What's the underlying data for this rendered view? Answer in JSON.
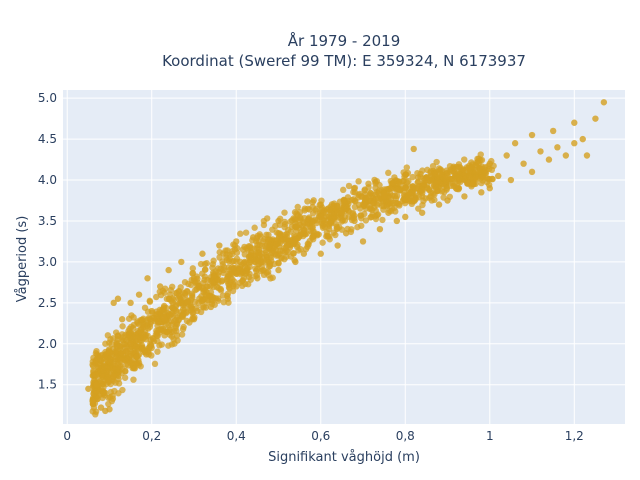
{
  "chart_data": {
    "type": "scatter",
    "title_line1": "År 1979 - 2019",
    "title_line2": "Koordinat (Sweref 99 TM): E 359324, N 6173937",
    "xlabel": "Signifikant våghöjd (m)",
    "ylabel": "Vågperiod (s)",
    "xlim": [
      -0.01,
      1.32
    ],
    "ylim": [
      1.02,
      5.1
    ],
    "x_ticks": [
      0,
      0.2,
      0.4,
      0.6,
      0.8,
      1.0,
      1.2
    ],
    "x_tick_labels": [
      "0",
      "0,2",
      "0,4",
      "0,6",
      "0,8",
      "1",
      "1,2"
    ],
    "y_ticks": [
      1.5,
      2.0,
      2.5,
      3.0,
      3.5,
      4.0,
      4.5,
      5.0
    ],
    "y_tick_labels": [
      "1.5",
      "2.0",
      "2.5",
      "3.0",
      "3.5",
      "4.0",
      "4.5",
      "5.0"
    ],
    "grid": true,
    "colors": {
      "marker": "#d4a020",
      "plot_bg": "#e5ecf6",
      "grid": "#ffffff",
      "text": "#2a3f5f"
    },
    "points": [
      [
        0.05,
        1.45
      ],
      [
        0.06,
        1.3
      ],
      [
        0.07,
        1.5
      ],
      [
        0.08,
        1.22
      ],
      [
        0.09,
        1.4
      ],
      [
        0.1,
        1.2
      ],
      [
        0.11,
        1.6
      ],
      [
        0.1,
        1.9
      ],
      [
        0.12,
        2.1
      ],
      [
        0.12,
        1.75
      ],
      [
        0.13,
        2.3
      ],
      [
        0.14,
        1.9
      ],
      [
        0.15,
        2.5
      ],
      [
        0.15,
        2.0
      ],
      [
        0.16,
        1.7
      ],
      [
        0.17,
        2.6
      ],
      [
        0.18,
        2.2
      ],
      [
        0.19,
        2.8
      ],
      [
        0.2,
        2.4
      ],
      [
        0.2,
        1.95
      ],
      [
        0.22,
        2.7
      ],
      [
        0.23,
        2.3
      ],
      [
        0.24,
        2.9
      ],
      [
        0.25,
        2.5
      ],
      [
        0.26,
        2.1
      ],
      [
        0.27,
        3.0
      ],
      [
        0.28,
        2.6
      ],
      [
        0.3,
        2.8
      ],
      [
        0.3,
        2.3
      ],
      [
        0.32,
        3.1
      ],
      [
        0.33,
        2.7
      ],
      [
        0.34,
        2.45
      ],
      [
        0.36,
        3.2
      ],
      [
        0.37,
        2.9
      ],
      [
        0.38,
        2.55
      ],
      [
        0.4,
        3.25
      ],
      [
        0.4,
        2.7
      ],
      [
        0.42,
        3.0
      ],
      [
        0.44,
        3.3
      ],
      [
        0.45,
        2.8
      ],
      [
        0.46,
        3.1
      ],
      [
        0.48,
        2.95
      ],
      [
        0.5,
        3.35
      ],
      [
        0.5,
        2.9
      ],
      [
        0.52,
        3.2
      ],
      [
        0.54,
        3.0
      ],
      [
        0.55,
        3.45
      ],
      [
        0.56,
        3.1
      ],
      [
        0.58,
        3.3
      ],
      [
        0.6,
        3.55
      ],
      [
        0.6,
        3.1
      ],
      [
        0.62,
        3.4
      ],
      [
        0.64,
        3.2
      ],
      [
        0.65,
        3.6
      ],
      [
        0.66,
        3.35
      ],
      [
        0.68,
        3.5
      ],
      [
        0.7,
        3.7
      ],
      [
        0.7,
        3.25
      ],
      [
        0.72,
        3.55
      ],
      [
        0.74,
        3.4
      ],
      [
        0.75,
        3.8
      ],
      [
        0.76,
        3.6
      ],
      [
        0.78,
        3.5
      ],
      [
        0.8,
        3.9
      ],
      [
        0.8,
        3.55
      ],
      [
        0.82,
        3.75
      ],
      [
        0.84,
        3.6
      ],
      [
        0.85,
        4.0
      ],
      [
        0.86,
        3.8
      ],
      [
        0.88,
        3.7
      ],
      [
        0.9,
        4.05
      ],
      [
        0.9,
        3.75
      ],
      [
        0.92,
        3.9
      ],
      [
        0.94,
        3.8
      ],
      [
        0.95,
        4.15
      ],
      [
        0.96,
        3.95
      ],
      [
        0.98,
        3.85
      ],
      [
        1.0,
        4.2
      ],
      [
        1.0,
        3.9
      ],
      [
        1.02,
        4.05
      ],
      [
        1.04,
        4.3
      ],
      [
        1.05,
        4.0
      ],
      [
        1.06,
        4.45
      ],
      [
        1.08,
        4.2
      ],
      [
        1.1,
        4.1
      ],
      [
        1.1,
        4.55
      ],
      [
        1.12,
        4.35
      ],
      [
        1.14,
        4.25
      ],
      [
        1.15,
        4.6
      ],
      [
        1.16,
        4.4
      ],
      [
        1.18,
        4.3
      ],
      [
        1.2,
        4.7
      ],
      [
        1.2,
        4.45
      ],
      [
        1.22,
        4.5
      ],
      [
        1.23,
        4.3
      ],
      [
        1.25,
        4.75
      ],
      [
        1.27,
        4.95
      ],
      [
        0.82,
        4.38
      ],
      [
        0.6,
        3.7
      ],
      [
        0.5,
        3.5
      ],
      [
        0.12,
        2.55
      ],
      [
        0.11,
        2.5
      ],
      [
        0.1,
        1.55
      ],
      [
        0.09,
        1.18
      ]
    ]
  }
}
